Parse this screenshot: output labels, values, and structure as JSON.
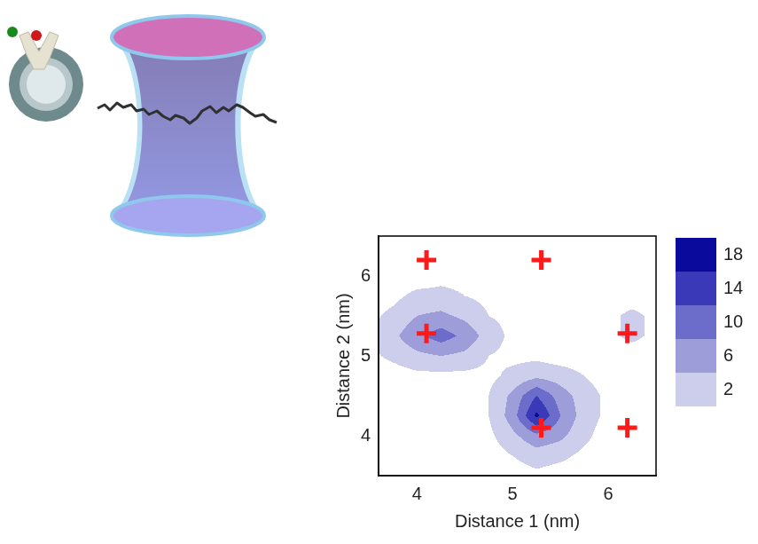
{
  "chart_data": {
    "type": "contour",
    "x_label": "Distance 1 (nm)",
    "y_label": "Distance 2 (nm)",
    "xlim": [
      3.6,
      6.5
    ],
    "ylim": [
      3.5,
      6.5
    ],
    "xticks": [
      4,
      5,
      6
    ],
    "yticks": [
      4,
      5,
      6
    ],
    "grid": false,
    "cells": {
      "x": [
        3.5,
        3.75,
        4.0,
        4.25,
        4.5,
        4.75,
        5.0,
        5.25,
        5.5,
        5.75,
        6.0,
        6.25,
        6.5
      ],
      "y": [
        3.5,
        3.75,
        4.0,
        4.25,
        4.5,
        4.75,
        5.0,
        5.25,
        5.5,
        5.75,
        6.0,
        6.25,
        6.5
      ],
      "z": [
        [
          0,
          0,
          0,
          0,
          0,
          0,
          0,
          1,
          0,
          0,
          0,
          0,
          0
        ],
        [
          0,
          0,
          0,
          0,
          0,
          0,
          2,
          4,
          3,
          1,
          0,
          0,
          0
        ],
        [
          0,
          0,
          0,
          0,
          0,
          1,
          5,
          9,
          7,
          3,
          0,
          0,
          0
        ],
        [
          0,
          0,
          0,
          0,
          0,
          2,
          8,
          19,
          10,
          4,
          1,
          0,
          0
        ],
        [
          0,
          0,
          0,
          0,
          0,
          2,
          7,
          14,
          8,
          4,
          1,
          0,
          0
        ],
        [
          0,
          0,
          1,
          1,
          1,
          1,
          3,
          5,
          4,
          2,
          0,
          0,
          0
        ],
        [
          1,
          3,
          5,
          6,
          5,
          2,
          1,
          1,
          0,
          0,
          0,
          0,
          0
        ],
        [
          2,
          5,
          9,
          12,
          9,
          4,
          1,
          0,
          0,
          0,
          1,
          3,
          1
        ],
        [
          1,
          3,
          6,
          7,
          5,
          2,
          1,
          0,
          0,
          0,
          1,
          3,
          1
        ],
        [
          0,
          1,
          3,
          3,
          2,
          1,
          0,
          0,
          0,
          0,
          0,
          0,
          0
        ],
        [
          0,
          0,
          0,
          1,
          1,
          0,
          0,
          0,
          0,
          0,
          0,
          0,
          0
        ],
        [
          0,
          0,
          0,
          0,
          0,
          0,
          0,
          2,
          1,
          0,
          0,
          0,
          0
        ],
        [
          0,
          0,
          0,
          0,
          0,
          0,
          0,
          0,
          2,
          0,
          0,
          0,
          0
        ]
      ]
    },
    "colorbar": {
      "levels": [
        2,
        6,
        10,
        14,
        18
      ],
      "colors": [
        "#cdcdec",
        "#9d9dda",
        "#6c6cca",
        "#3a3ab8",
        "#0a0a9c"
      ]
    },
    "markers": {
      "x": [
        4.1,
        5.3,
        4.1,
        6.2,
        5.3,
        6.2
      ],
      "y": [
        6.2,
        6.2,
        5.28,
        5.28,
        4.1,
        4.1
      ],
      "color": "#ff1a1a",
      "marker": "cross"
    }
  }
}
